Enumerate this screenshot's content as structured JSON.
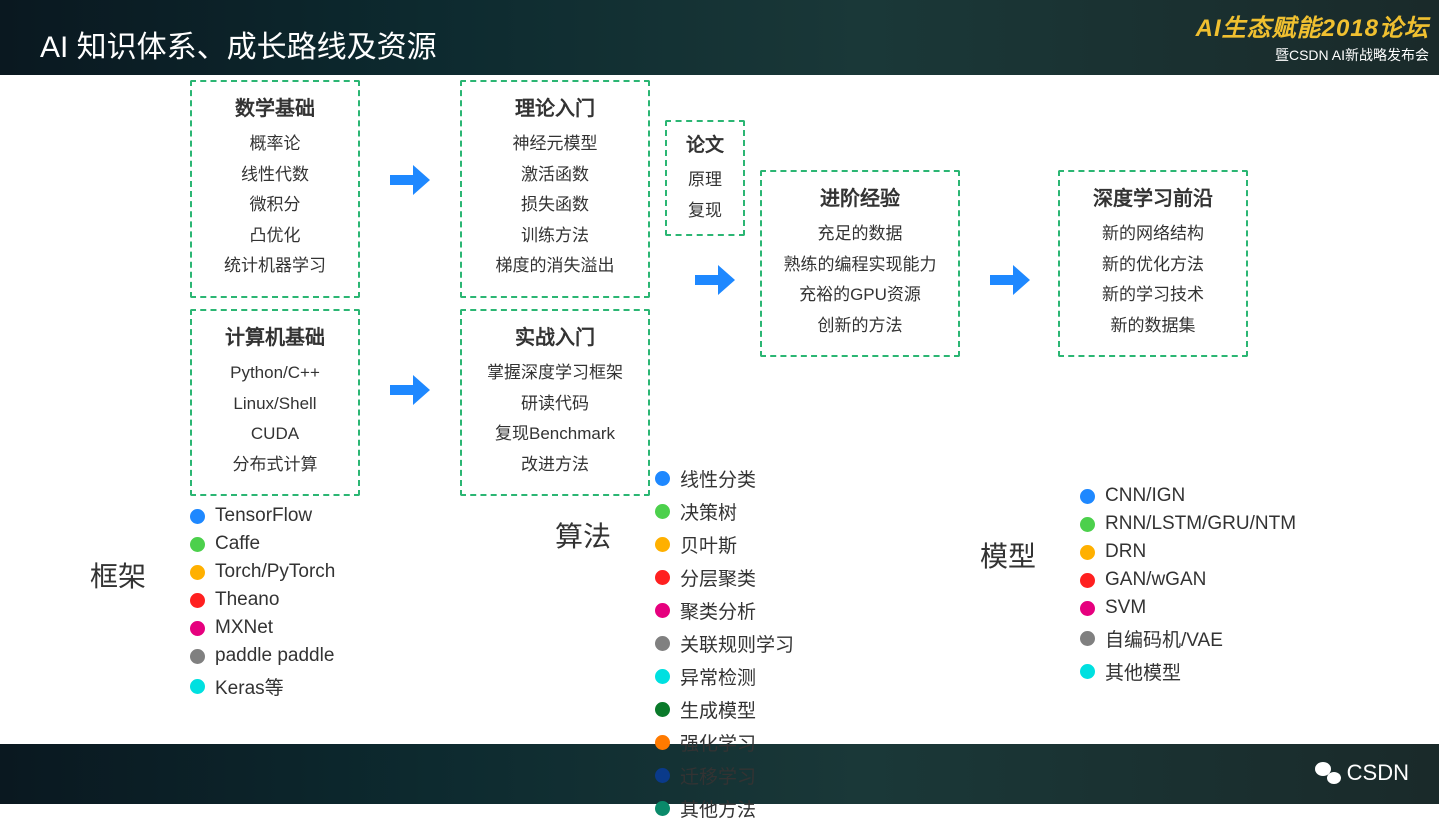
{
  "page_title": "AI 知识体系、成长路线及资源",
  "logo": {
    "main": "AI生态赋能2018论坛",
    "sub": "暨CSDN AI新战略发布会"
  },
  "watermark": "CSDN",
  "colors": {
    "border": "#2bb673",
    "arrow": "#1e88ff",
    "dots": {
      "blue": "#1e88ff",
      "green": "#4cd04c",
      "orange": "#ffb000",
      "red": "#ff2020",
      "magenta": "#e6007e",
      "gray": "#808080",
      "cyan": "#00e0e0",
      "darkgreen": "#0a7a2a",
      "darkorange": "#ff7a00",
      "navy": "#0a3a8a",
      "teal": "#0a8a6a"
    }
  },
  "boxes": {
    "math": {
      "title": "数学基础",
      "items": [
        "概率论",
        "线性代数",
        "微积分",
        "凸优化",
        "统计机器学习"
      ]
    },
    "cs": {
      "title": "计算机基础",
      "items": [
        "Python/C++",
        "Linux/Shell",
        "CUDA",
        "分布式计算"
      ]
    },
    "theory": {
      "title": "理论入门",
      "items": [
        "神经元模型",
        "激活函数",
        "损失函数",
        "训练方法",
        "梯度的消失溢出"
      ]
    },
    "practice": {
      "title": "实战入门",
      "items": [
        "掌握深度学习框架",
        "研读代码",
        "复现Benchmark",
        "改进方法"
      ]
    },
    "paper": {
      "title": "论文",
      "items": [
        "原理",
        "复现"
      ]
    },
    "advanced": {
      "title": "进阶经验",
      "items": [
        "充足的数据",
        "熟练的编程实现能力",
        "充裕的GPU资源",
        "创新的方法"
      ]
    },
    "frontier": {
      "title": "深度学习前沿",
      "items": [
        "新的网络结构",
        "新的优化方法",
        "新的学习技术",
        "新的数据集"
      ]
    }
  },
  "legends": {
    "framework": {
      "label": "框架",
      "items": [
        {
          "text": "TensorFlow",
          "color": "blue"
        },
        {
          "text": "Caffe",
          "color": "green"
        },
        {
          "text": "Torch/PyTorch",
          "color": "orange"
        },
        {
          "text": "Theano",
          "color": "red"
        },
        {
          "text": "MXNet",
          "color": "magenta"
        },
        {
          "text": "paddle paddle",
          "color": "gray"
        },
        {
          "text": "Keras等",
          "color": "cyan"
        }
      ]
    },
    "algorithm": {
      "label": "算法",
      "items": [
        {
          "text": "线性分类",
          "color": "blue"
        },
        {
          "text": "决策树",
          "color": "green"
        },
        {
          "text": "贝叶斯",
          "color": "orange"
        },
        {
          "text": "分层聚类",
          "color": "red"
        },
        {
          "text": "聚类分析",
          "color": "magenta"
        },
        {
          "text": "关联规则学习",
          "color": "gray"
        },
        {
          "text": "异常检测",
          "color": "cyan"
        },
        {
          "text": "生成模型",
          "color": "darkgreen"
        },
        {
          "text": "强化学习",
          "color": "darkorange"
        },
        {
          "text": "迁移学习",
          "color": "navy"
        },
        {
          "text": "其他方法",
          "color": "teal"
        }
      ]
    },
    "model": {
      "label": "模型",
      "items": [
        {
          "text": "CNN/IGN",
          "color": "blue"
        },
        {
          "text": "RNN/LSTM/GRU/NTM",
          "color": "green"
        },
        {
          "text": "DRN",
          "color": "orange"
        },
        {
          "text": "GAN/wGAN",
          "color": "red"
        },
        {
          "text": "SVM",
          "color": "magenta"
        },
        {
          "text": "自编码机/VAE",
          "color": "gray"
        },
        {
          "text": "其他模型",
          "color": "cyan"
        }
      ]
    }
  }
}
